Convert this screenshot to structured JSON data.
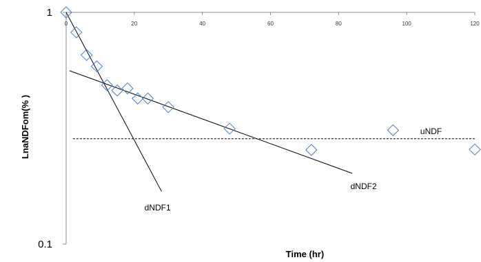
{
  "chart_data": {
    "type": "scatter",
    "title": "",
    "xlabel": "Time (hr)",
    "ylabel": "LnaNDFom(% )",
    "xlim": [
      0,
      120
    ],
    "ylim": [
      0.1,
      1
    ],
    "yscale": "log",
    "x_ticks": [
      0,
      20,
      40,
      60,
      80,
      100,
      120
    ],
    "y_ticks": [
      {
        "value": 0.1,
        "label": "0.1"
      },
      {
        "value": 1,
        "label": "1"
      }
    ],
    "grid": false,
    "legend": "none",
    "series": [
      {
        "marker": "diamond-open",
        "color": "#4a7ebb",
        "x": [
          0,
          3,
          6,
          9,
          12,
          15,
          18,
          21,
          24,
          30,
          48,
          72,
          96,
          120
        ],
        "y": [
          1.0,
          0.82,
          0.655,
          0.585,
          0.485,
          0.46,
          0.47,
          0.425,
          0.425,
          0.39,
          0.315,
          0.255,
          0.31,
          0.256
        ]
      }
    ],
    "lines": [
      {
        "style": "solid",
        "color": "#000000",
        "x": [
          0,
          28
        ],
        "y": [
          1.0,
          0.169
        ]
      },
      {
        "style": "solid",
        "color": "#000000",
        "x": [
          1,
          84
        ],
        "y": [
          0.56,
          0.202
        ]
      },
      {
        "style": "dashed",
        "color": "#000000",
        "x": [
          2,
          120
        ],
        "y": [
          0.285,
          0.285
        ]
      }
    ],
    "annotations": [
      {
        "text": "uNDF",
        "x": 104,
        "y": 0.298
      },
      {
        "text": "dNDF2",
        "x": 83.5,
        "y": 0.173
      },
      {
        "text": "dNDF1",
        "x": 23,
        "y": 0.14
      }
    ]
  }
}
